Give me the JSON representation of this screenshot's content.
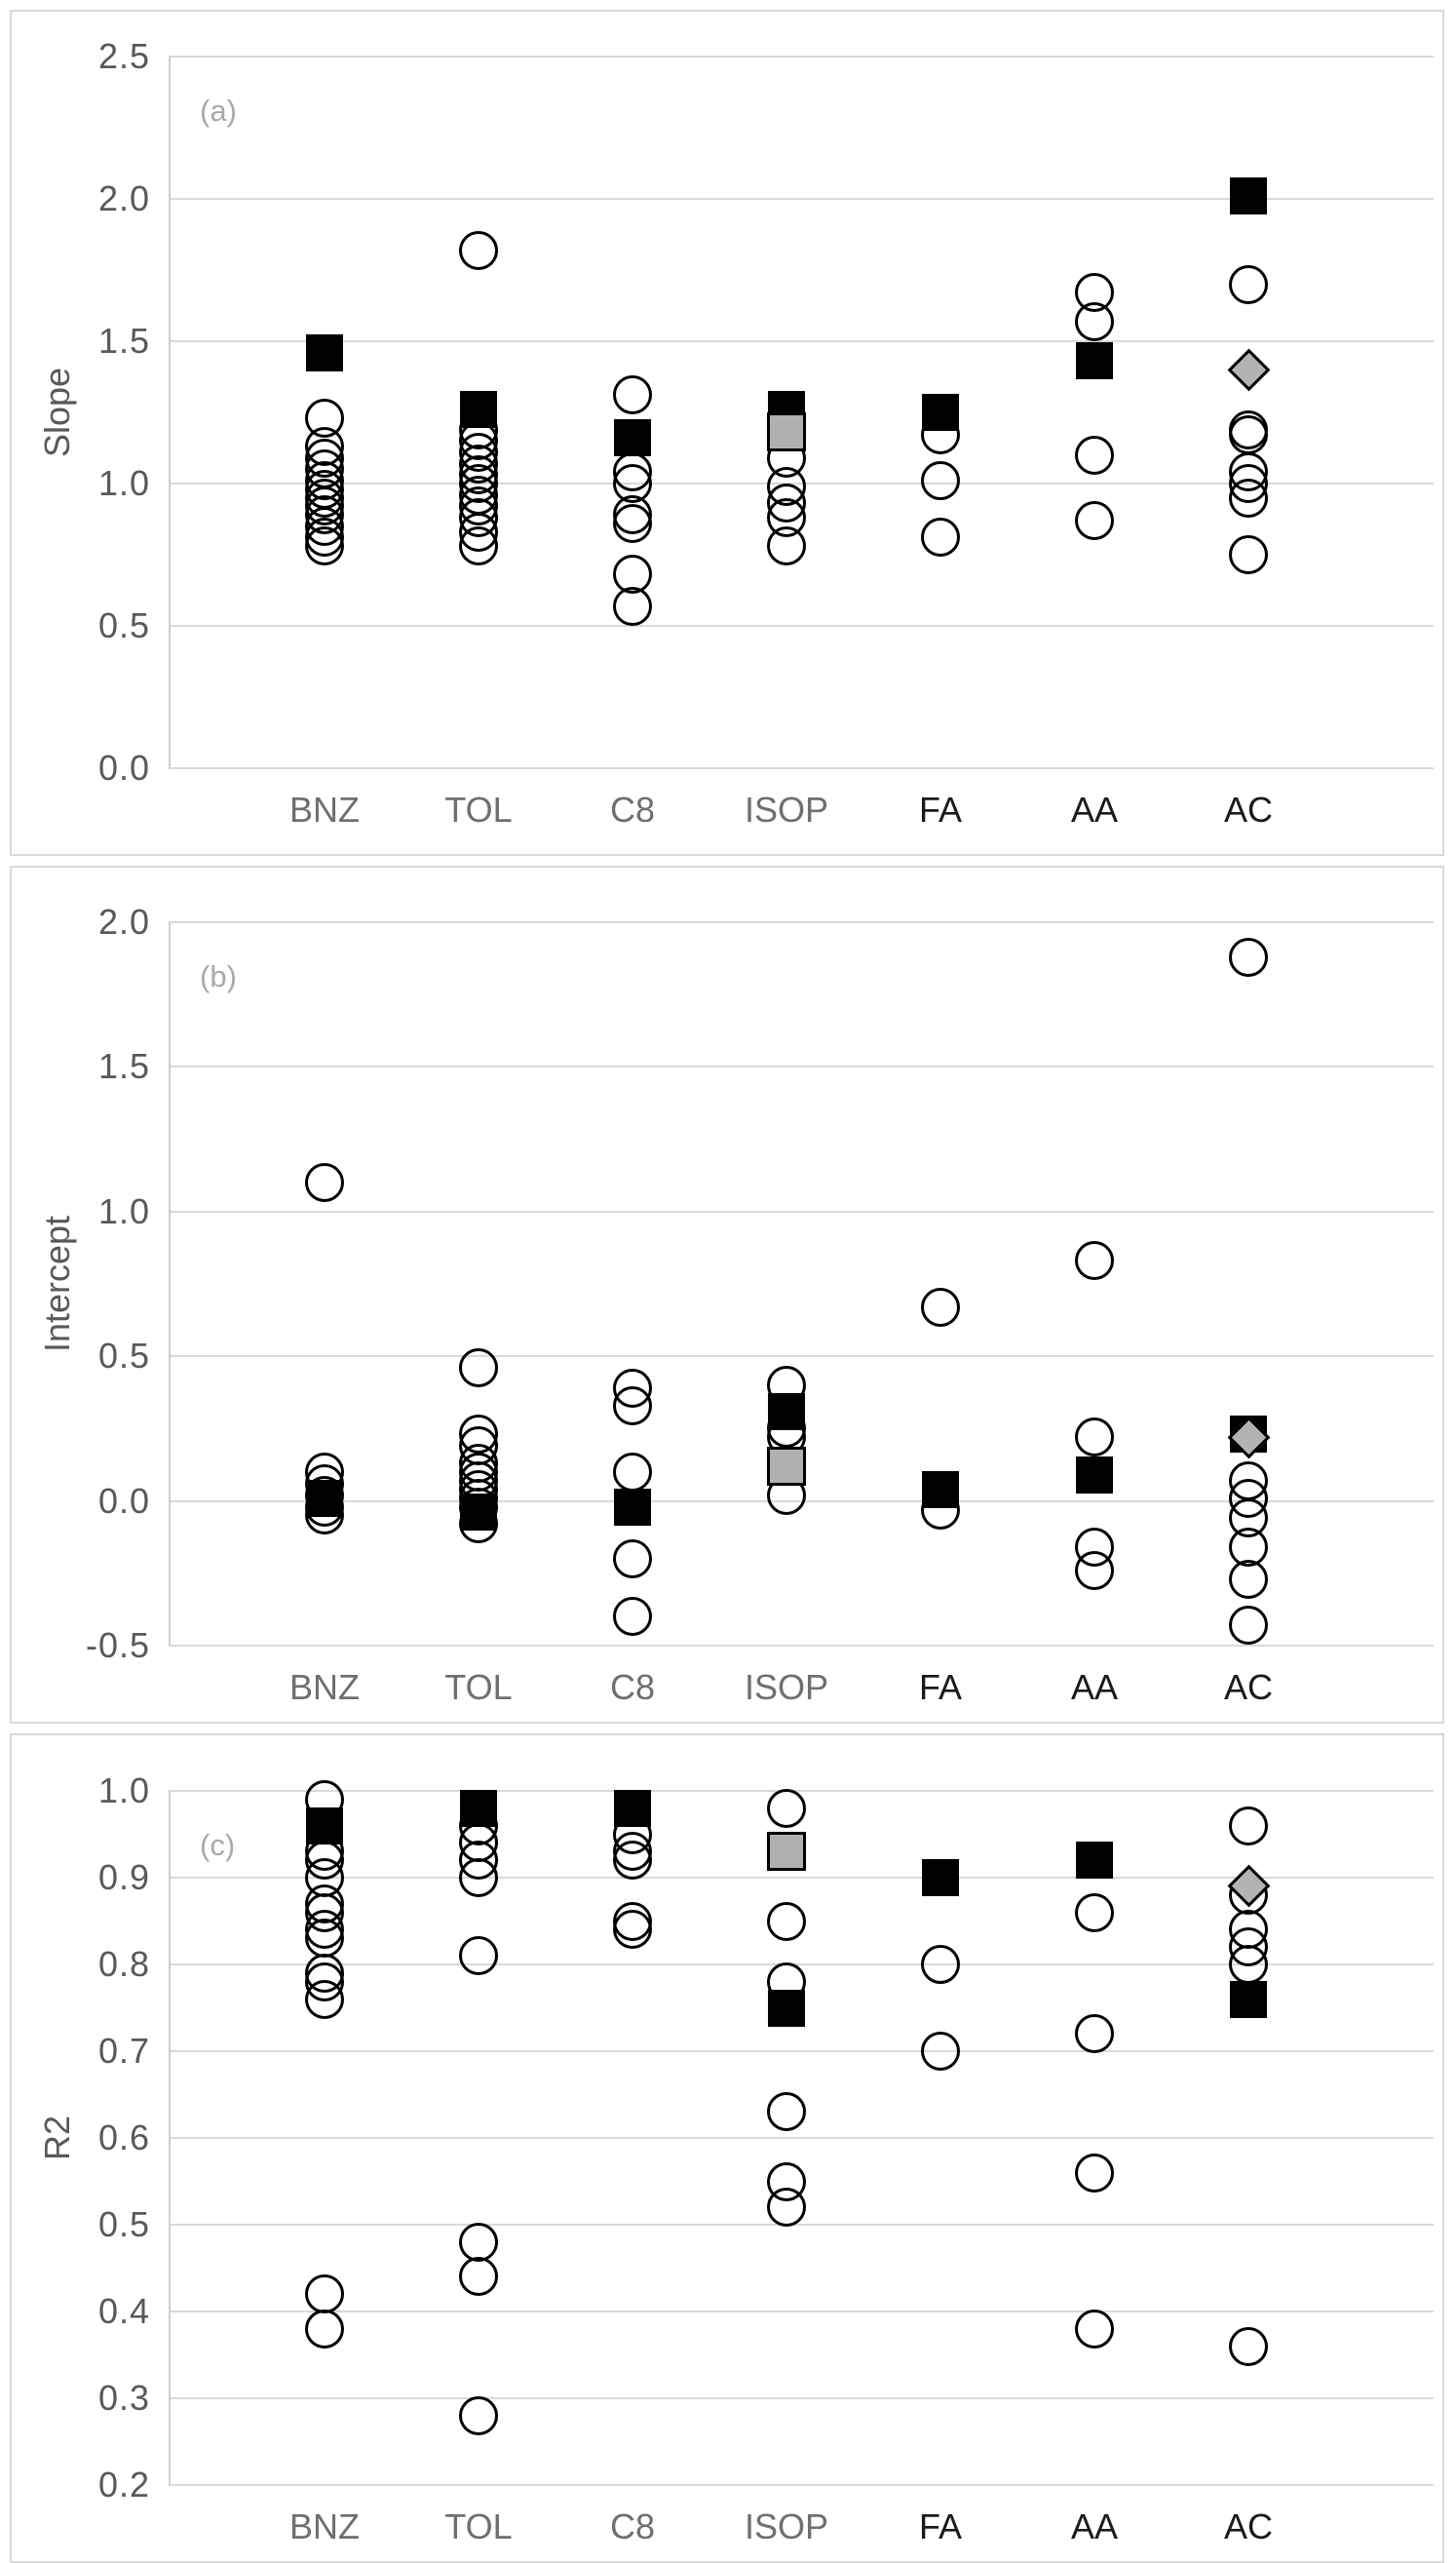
{
  "figure_title": "",
  "marker_legend": {
    "open_circle": "individual data (open circle)",
    "black_square": "black filled square",
    "gray_square": "gray filled square",
    "gray_diamond": "gray filled diamond"
  },
  "chart_data": [
    {
      "type": "scatter",
      "panel_label": "(a)",
      "ylabel": "Slope",
      "ylim": [
        0.0,
        2.5
      ],
      "ytick_labels": [
        "2.5",
        "2.0",
        "1.5",
        "1.0",
        "0.5",
        "0.0"
      ],
      "grid": true,
      "categories": [
        "BNZ",
        "TOL",
        "C8",
        "ISOP",
        "FA",
        "AA",
        "AC"
      ],
      "series": [
        {
          "name": "open-circles",
          "marker": "open-circle",
          "values_by_category": [
            [
              1.23,
              1.13,
              1.09,
              1.05,
              1.01,
              0.98,
              0.95,
              0.92,
              0.89,
              0.85,
              0.81,
              0.78
            ],
            [
              1.82,
              1.19,
              1.15,
              1.11,
              1.07,
              1.03,
              1.0,
              0.96,
              0.92,
              0.88,
              0.83,
              0.78
            ],
            [
              1.31,
              1.04,
              1.0,
              0.89,
              0.86,
              0.68,
              0.57
            ],
            [
              1.09,
              0.99,
              0.93,
              0.88,
              0.78
            ],
            [
              1.17,
              1.01,
              0.81
            ],
            [
              1.67,
              1.57,
              1.1,
              0.87
            ],
            [
              1.7,
              1.19,
              1.17,
              1.04,
              1.0,
              0.95,
              0.75
            ]
          ]
        },
        {
          "name": "black-squares",
          "marker": "black-square",
          "values_by_category": [
            [
              1.46
            ],
            [
              1.26
            ],
            [
              1.16
            ],
            [
              1.26
            ],
            [
              1.25
            ],
            [
              1.43
            ],
            [
              2.01
            ]
          ]
        },
        {
          "name": "gray-squares",
          "marker": "gray-square",
          "values_by_category": [
            [],
            [],
            [],
            [
              1.18
            ],
            [],
            [],
            []
          ]
        },
        {
          "name": "gray-diamonds",
          "marker": "gray-diamond",
          "values_by_category": [
            [],
            [],
            [],
            [],
            [],
            [],
            [
              1.4
            ]
          ]
        }
      ]
    },
    {
      "type": "scatter",
      "panel_label": "(b)",
      "ylabel": "Intercept",
      "ylim": [
        -0.5,
        2.0
      ],
      "ytick_labels": [
        "2.0",
        "1.5",
        "1.0",
        "0.5",
        "0.0",
        "-0.5"
      ],
      "grid": true,
      "categories": [
        "BNZ",
        "TOL",
        "C8",
        "ISOP",
        "FA",
        "AA",
        "AC"
      ],
      "series": [
        {
          "name": "open-circles",
          "marker": "open-circle",
          "values_by_category": [
            [
              1.1,
              0.1,
              0.06,
              0.02,
              -0.02,
              -0.05
            ],
            [
              0.46,
              0.23,
              0.19,
              0.13,
              0.1,
              0.07,
              0.04,
              0.01,
              -0.02,
              -0.08
            ],
            [
              0.39,
              0.33,
              0.1,
              -0.2,
              -0.4
            ],
            [
              0.4,
              0.25,
              0.22,
              0.02
            ],
            [
              0.67,
              -0.03
            ],
            [
              0.83,
              0.22,
              -0.16,
              -0.24
            ],
            [
              1.88,
              0.07,
              0.01,
              -0.06,
              -0.16,
              -0.27,
              -0.43
            ]
          ]
        },
        {
          "name": "black-squares",
          "marker": "black-square",
          "values_by_category": [
            [
              0.01
            ],
            [
              -0.04
            ],
            [
              -0.02
            ],
            [
              0.31
            ],
            [
              0.04
            ],
            [
              0.09
            ],
            [
              0.23
            ]
          ]
        },
        {
          "name": "gray-squares",
          "marker": "gray-square",
          "values_by_category": [
            [],
            [],
            [],
            [
              0.12
            ],
            [],
            [],
            []
          ]
        },
        {
          "name": "gray-diamonds",
          "marker": "gray-diamond",
          "values_by_category": [
            [],
            [],
            [],
            [],
            [],
            [],
            [
              0.22
            ]
          ]
        }
      ]
    },
    {
      "type": "scatter",
      "panel_label": "(c)",
      "ylabel": "R2",
      "ylim": [
        0.2,
        1.0
      ],
      "ytick_labels": [
        "1.0",
        "0.9",
        "0.8",
        "0.7",
        "0.6",
        "0.5",
        "0.4",
        "0.3",
        "0.2"
      ],
      "grid": true,
      "categories": [
        "BNZ",
        "TOL",
        "C8",
        "ISOP",
        "FA",
        "AA",
        "AC"
      ],
      "series": [
        {
          "name": "open-circles",
          "marker": "open-circle",
          "values_by_category": [
            [
              0.99,
              0.93,
              0.92,
              0.9,
              0.87,
              0.86,
              0.84,
              0.83,
              0.79,
              0.78,
              0.76,
              0.42,
              0.38
            ],
            [
              0.96,
              0.94,
              0.92,
              0.9,
              0.81,
              0.48,
              0.44,
              0.28
            ],
            [
              0.95,
              0.93,
              0.92,
              0.85,
              0.84
            ],
            [
              0.98,
              0.85,
              0.78,
              0.63,
              0.55,
              0.52
            ],
            [
              0.8,
              0.7
            ],
            [
              0.86,
              0.72,
              0.56,
              0.38
            ],
            [
              0.96,
              0.88,
              0.84,
              0.82,
              0.8,
              0.36
            ]
          ]
        },
        {
          "name": "black-squares",
          "marker": "black-square",
          "values_by_category": [
            [
              0.96
            ],
            [
              0.98
            ],
            [
              0.98
            ],
            [
              0.75
            ],
            [
              0.9
            ],
            [
              0.92
            ],
            [
              0.76
            ]
          ]
        },
        {
          "name": "gray-squares",
          "marker": "gray-square",
          "values_by_category": [
            [],
            [],
            [],
            [
              0.93
            ],
            [],
            [],
            []
          ]
        },
        {
          "name": "gray-diamonds",
          "marker": "gray-diamond",
          "values_by_category": [
            [],
            [],
            [],
            [],
            [],
            [],
            [
              0.89
            ]
          ]
        }
      ]
    }
  ]
}
